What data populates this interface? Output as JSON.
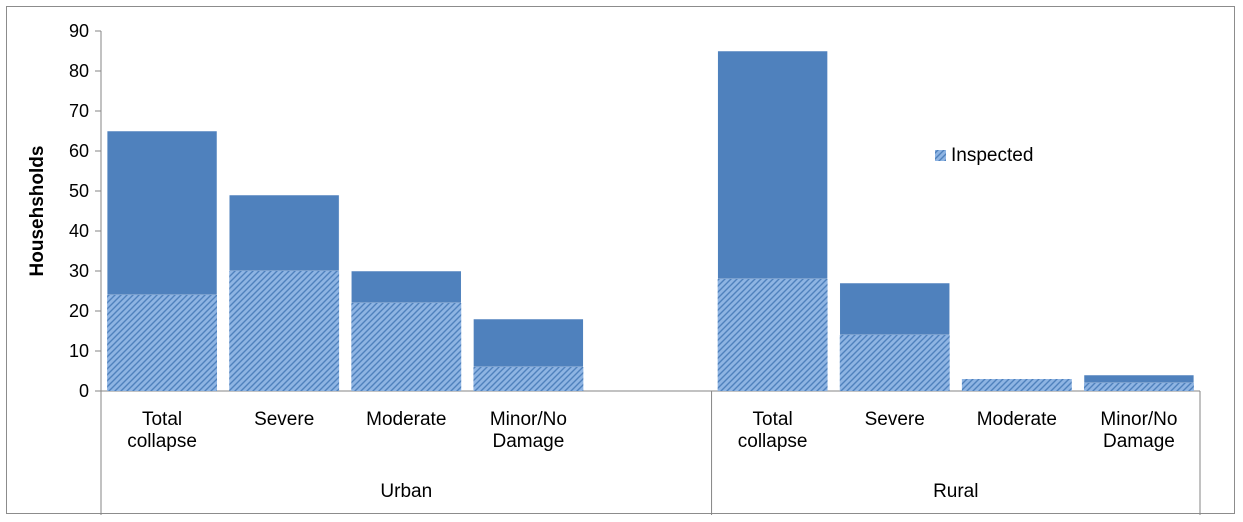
{
  "chart_data": {
    "type": "bar",
    "stacked": true,
    "title": "",
    "xlabel": "",
    "ylabel": "Househsholds",
    "ylim": [
      0,
      90
    ],
    "yticks": [
      0,
      10,
      20,
      30,
      40,
      50,
      60,
      70,
      80,
      90
    ],
    "grid": false,
    "legend_position": "right",
    "groups": [
      {
        "name": "Urban",
        "categories": [
          [
            "Total",
            "collapse"
          ],
          [
            "Severe"
          ],
          [
            "Moderate"
          ],
          [
            "Minor/No",
            "Damage"
          ]
        ],
        "inspected": [
          24,
          30,
          22,
          6
        ],
        "total": [
          65,
          49,
          30,
          18
        ]
      },
      {
        "name": "Rural",
        "categories": [
          [
            "Total",
            "collapse"
          ],
          [
            "Severe"
          ],
          [
            "Moderate"
          ],
          [
            "Minor/No",
            "Damage"
          ]
        ],
        "inspected": [
          28,
          14,
          3,
          2
        ],
        "total": [
          85,
          27,
          3,
          4
        ]
      }
    ],
    "series": [
      {
        "name": "Inspected",
        "key": "inspected",
        "color": "#8eb4e3",
        "pattern": "diagonal-hatch"
      },
      {
        "name": "",
        "key": "remainder",
        "color": "#4f81bd",
        "pattern": "solid"
      }
    ],
    "legend": [
      {
        "label": "Inspected",
        "series": "inspected"
      }
    ]
  }
}
